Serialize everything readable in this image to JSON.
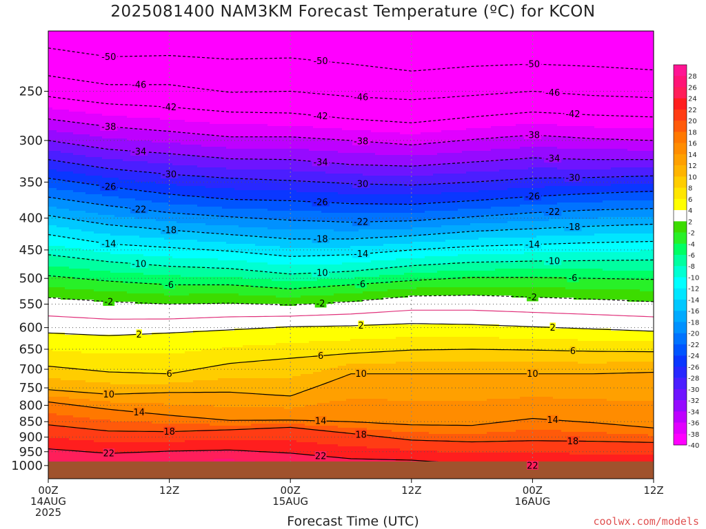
{
  "title": "2025081400 NAM3KM Forecast Temperature (ºC) for KCON",
  "footer": "coolwx.com/models",
  "chart_data": {
    "type": "heatmap",
    "title": "2025081400 NAM3KM Forecast Temperature (ºC) for KCON",
    "xlabel": "Forecast Time (UTC)",
    "ylabel": "",
    "x_range_hours": [
      0,
      60
    ],
    "y_axis": {
      "scale": "log",
      "reversed": true,
      "range": [
        200,
        1050
      ],
      "units": "hPa"
    },
    "x_ticks": [
      {
        "hour": 0,
        "lines": [
          "00Z",
          "14AUG",
          "2025"
        ]
      },
      {
        "hour": 12,
        "lines": [
          "12Z"
        ]
      },
      {
        "hour": 24,
        "lines": [
          "00Z",
          "15AUG"
        ]
      },
      {
        "hour": 36,
        "lines": [
          "12Z"
        ]
      },
      {
        "hour": 48,
        "lines": [
          "00Z",
          "16AUG"
        ]
      },
      {
        "hour": 60,
        "lines": [
          "12Z"
        ]
      }
    ],
    "y_ticks": [
      250,
      300,
      350,
      400,
      450,
      500,
      550,
      600,
      650,
      700,
      750,
      800,
      850,
      900,
      950,
      1000
    ],
    "grid": true,
    "surface_pressure_hPa": 985,
    "x_hours": [
      0,
      6,
      12,
      18,
      24,
      30,
      36,
      42,
      48,
      54,
      60
    ],
    "isotherms": [
      {
        "temp": -50,
        "p": [
          213,
          220,
          219,
          222,
          221,
          226,
          232,
          228,
          226,
          228,
          231
        ]
      },
      {
        "temp": -46,
        "p": [
          236,
          244,
          244,
          251,
          250,
          255,
          258,
          254,
          250,
          254,
          256
        ]
      },
      {
        "temp": -42,
        "p": [
          255,
          262,
          265,
          270,
          271,
          277,
          281,
          275,
          270,
          273,
          275
        ]
      },
      {
        "temp": -38,
        "p": [
          277,
          285,
          290,
          296,
          296,
          300,
          305,
          299,
          294,
          298,
          300
        ]
      },
      {
        "temp": -34,
        "p": [
          300,
          310,
          315,
          321,
          322,
          328,
          330,
          325,
          320,
          322,
          322
        ]
      },
      {
        "temp": -30,
        "p": [
          322,
          333,
          340,
          345,
          348,
          352,
          354,
          350,
          345,
          344,
          342
        ]
      },
      {
        "temp": -26,
        "p": [
          345,
          356,
          366,
          373,
          375,
          379,
          380,
          375,
          369,
          365,
          362
        ]
      },
      {
        "temp": -22,
        "p": [
          370,
          382,
          392,
          398,
          403,
          406,
          404,
          398,
          392,
          388,
          386
        ]
      },
      {
        "temp": -18,
        "p": [
          396,
          410,
          418,
          425,
          432,
          432,
          427,
          420,
          416,
          412,
          409
        ]
      },
      {
        "temp": -14,
        "p": [
          425,
          440,
          446,
          452,
          461,
          458,
          450,
          444,
          441,
          438,
          436
        ]
      },
      {
        "temp": -10,
        "p": [
          458,
          470,
          478,
          482,
          492,
          487,
          477,
          471,
          469,
          468,
          467
        ]
      },
      {
        "temp": -6,
        "p": [
          495,
          505,
          512,
          512,
          520,
          512,
          504,
          498,
          498,
          500,
          502
        ]
      },
      {
        "temp": -2,
        "p": [
          537,
          545,
          550,
          548,
          552,
          545,
          534,
          532,
          536,
          540,
          545
        ]
      },
      {
        "temp": 2,
        "p": [
          612,
          618,
          612,
          605,
          598,
          596,
          591,
          593,
          598,
          603,
          608
        ]
      },
      {
        "temp": 6,
        "p": [
          692,
          707,
          712,
          685,
          672,
          660,
          652,
          650,
          652,
          655,
          656
        ]
      },
      {
        "temp": 10,
        "p": [
          755,
          768,
          763,
          762,
          773,
          712,
          712,
          712,
          712,
          712,
          708
        ]
      },
      {
        "temp": 14,
        "p": [
          790,
          812,
          830,
          846,
          845,
          850,
          860,
          862,
          840,
          853,
          870
        ]
      },
      {
        "temp": 18,
        "p": [
          860,
          880,
          882,
          876,
          868,
          888,
          910,
          916,
          912,
          914,
          918
        ]
      },
      {
        "temp": 22,
        "p": [
          940,
          956,
          948,
          944,
          955,
          975,
          980,
          995,
          1000,
          1000,
          1000
        ]
      }
    ],
    "colorbar_labels": [
      28,
      26,
      24,
      22,
      20,
      18,
      16,
      14,
      12,
      10,
      8,
      6,
      4,
      2,
      -2,
      -4,
      -6,
      -8,
      -10,
      -12,
      -14,
      -16,
      -18,
      -20,
      -22,
      -24,
      -26,
      -28,
      -30,
      -32,
      -34,
      -36,
      -38,
      -40
    ],
    "colorbar": [
      {
        "min": 26,
        "color": "#ff1493"
      },
      {
        "min": 24,
        "color": "#ff1476"
      },
      {
        "min": 22,
        "color": "#ff1e5a"
      },
      {
        "min": 20,
        "color": "#ff1e1e"
      },
      {
        "min": 18,
        "color": "#ff3c14"
      },
      {
        "min": 16,
        "color": "#ff5a0a"
      },
      {
        "min": 14,
        "color": "#ff7800"
      },
      {
        "min": 12,
        "color": "#ff8c00"
      },
      {
        "min": 10,
        "color": "#ffa000"
      },
      {
        "min": 8,
        "color": "#ffb400"
      },
      {
        "min": 6,
        "color": "#ffcd00"
      },
      {
        "min": 4,
        "color": "#ffe600"
      },
      {
        "min": 2,
        "color": "#ffff00"
      },
      {
        "min": -2,
        "color": "#ffffff"
      },
      {
        "min": -4,
        "color": "#3cdc00"
      },
      {
        "min": -6,
        "color": "#28f028"
      },
      {
        "min": -8,
        "color": "#00ff64"
      },
      {
        "min": -10,
        "color": "#00ffa0"
      },
      {
        "min": -12,
        "color": "#00ffd2"
      },
      {
        "min": -14,
        "color": "#00ffff"
      },
      {
        "min": -16,
        "color": "#00e6ff"
      },
      {
        "min": -18,
        "color": "#00c8ff"
      },
      {
        "min": -20,
        "color": "#00aaff"
      },
      {
        "min": -22,
        "color": "#0091ff"
      },
      {
        "min": -24,
        "color": "#0073ff"
      },
      {
        "min": -26,
        "color": "#0055ff"
      },
      {
        "min": -28,
        "color": "#0a37ff"
      },
      {
        "min": -30,
        "color": "#2828ff"
      },
      {
        "min": -32,
        "color": "#4b1eff"
      },
      {
        "min": -34,
        "color": "#6e14ff"
      },
      {
        "min": -36,
        "color": "#960aff"
      },
      {
        "min": -38,
        "color": "#be00ff"
      },
      {
        "min": -40,
        "color": "#e100ff"
      },
      {
        "min": -100,
        "color": "#ff00ff"
      }
    ],
    "ground_color": "#a0522d",
    "zero_line_color": "#e0307a"
  }
}
